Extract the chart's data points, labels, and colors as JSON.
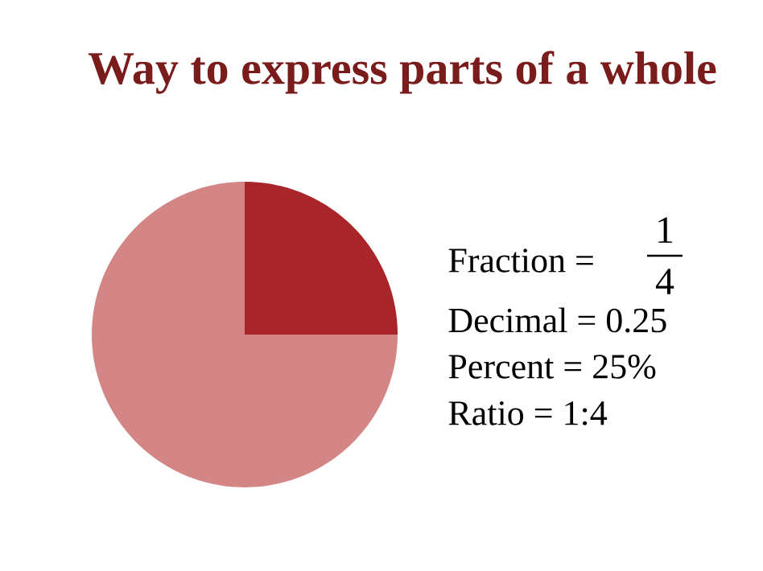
{
  "chart_data": {
    "type": "pie",
    "title": "Way to express parts of a whole",
    "categories": [
      null,
      null
    ],
    "values": [
      25,
      75
    ],
    "colors": [
      "#a8262a",
      "#d48686"
    ],
    "annotations": [
      "Fraction =",
      "1",
      "4",
      "Decimal = 0.25",
      "Percent  = 25%",
      "Ratio     = 1:4"
    ]
  }
}
